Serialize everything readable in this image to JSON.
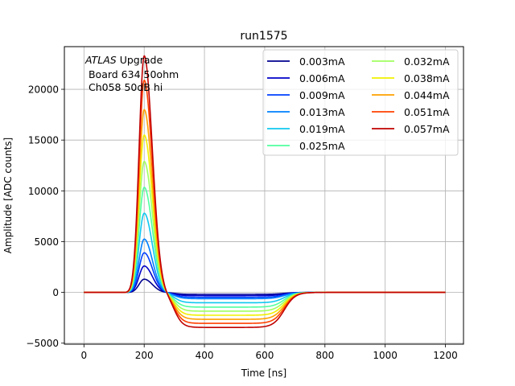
{
  "chart_data": {
    "type": "line",
    "title": "run1575",
    "xlabel": "Time [ns]",
    "ylabel": "Amplitude [ADC counts]",
    "xlim": [
      -65,
      1260
    ],
    "ylim": [
      -5100,
      24200
    ],
    "xticks": [
      0,
      200,
      400,
      600,
      800,
      1000,
      1200
    ],
    "yticks": [
      -5000,
      0,
      5000,
      10000,
      15000,
      20000
    ],
    "grid": true,
    "legend_position": "top-right",
    "legend_columns": 2,
    "annotation": {
      "italic": "ATLAS",
      "rest": " Upgrade",
      "line2": " Board 634 50ohm",
      "line3": " Ch058 50dB hi"
    },
    "series": [
      {
        "name": "0.003mA",
        "color": "#00008f",
        "peak": 1300,
        "undershoot": -190
      },
      {
        "name": "0.006mA",
        "color": "#0000c8",
        "peak": 2600,
        "undershoot": -320
      },
      {
        "name": "0.009mA",
        "color": "#0040ff",
        "peak": 3900,
        "undershoot": -480
      },
      {
        "name": "0.013mA",
        "color": "#0080ff",
        "peak": 5250,
        "undershoot": -620
      },
      {
        "name": "0.019mA",
        "color": "#10c8f0",
        "peak": 7800,
        "undershoot": -1020
      },
      {
        "name": "0.025mA",
        "color": "#50ff9f",
        "peak": 10350,
        "undershoot": -1450
      },
      {
        "name": "0.032mA",
        "color": "#a0ff60",
        "peak": 12900,
        "undershoot": -1850
      },
      {
        "name": "0.038mA",
        "color": "#f0f000",
        "peak": 15500,
        "undershoot": -2250
      },
      {
        "name": "0.044mA",
        "color": "#ffa000",
        "peak": 18000,
        "undershoot": -2650
      },
      {
        "name": "0.051mA",
        "color": "#ff4000",
        "peak": 20900,
        "undershoot": -3050
      },
      {
        "name": "0.057mA",
        "color": "#c00000",
        "peak": 23300,
        "undershoot": -3450
      }
    ]
  }
}
